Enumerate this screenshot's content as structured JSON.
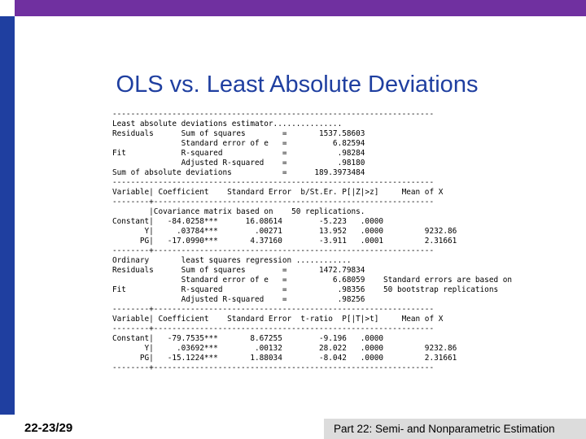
{
  "slide": {
    "title": "OLS vs. Least Absolute Deviations",
    "number": "22-23/29",
    "footer": "Part 22: Semi- and Nonparametric Estimation"
  },
  "output": {
    "lines": [
      "----------------------------------------------------------------------",
      "Least absolute deviations estimator...............",
      "Residuals      Sum of squares        =       1537.58603",
      "               Standard error of e   =          6.82594",
      "Fit            R-squared             =           .98284",
      "               Adjusted R-squared    =           .98180",
      "Sum of absolute deviations           =      189.3973484",
      "----------------------------------------------------------------------",
      "Variable| Coefficient    Standard Error  b/St.Er. P[|Z|>z]     Mean of X",
      "--------+-------------------------------------------------------------",
      "        |Covariance matrix based on    50 replications.",
      "Constant|   -84.0258***      16.08614        -5.223   .0000",
      "       Y|     .03784***        .00271        13.952   .0000         9232.86",
      "      PG|   -17.0990***       4.37160        -3.911   .0001         2.31661",
      "--------+-------------------------------------------------------------",
      "Ordinary       least squares regression ............",
      "Residuals      Sum of squares        =       1472.79834",
      "               Standard error of e   =          6.68059    Standard errors are based on",
      "Fit            R-squared             =           .98356    50 bootstrap replications",
      "               Adjusted R-squared    =           .98256",
      "--------+-------------------------------------------------------------",
      "Variable| Coefficient    Standard Error  t-ratio  P[|T|>t]     Mean of X",
      "--------+-------------------------------------------------------------",
      "Constant|   -79.7535***       8.67255        -9.196   .0000",
      "       Y|     .03692***        .00132        28.022   .0000         9232.86",
      "      PG|   -15.1224***       1.88034        -8.042   .0000         2.31661",
      "--------+-------------------------------------------------------------"
    ]
  }
}
